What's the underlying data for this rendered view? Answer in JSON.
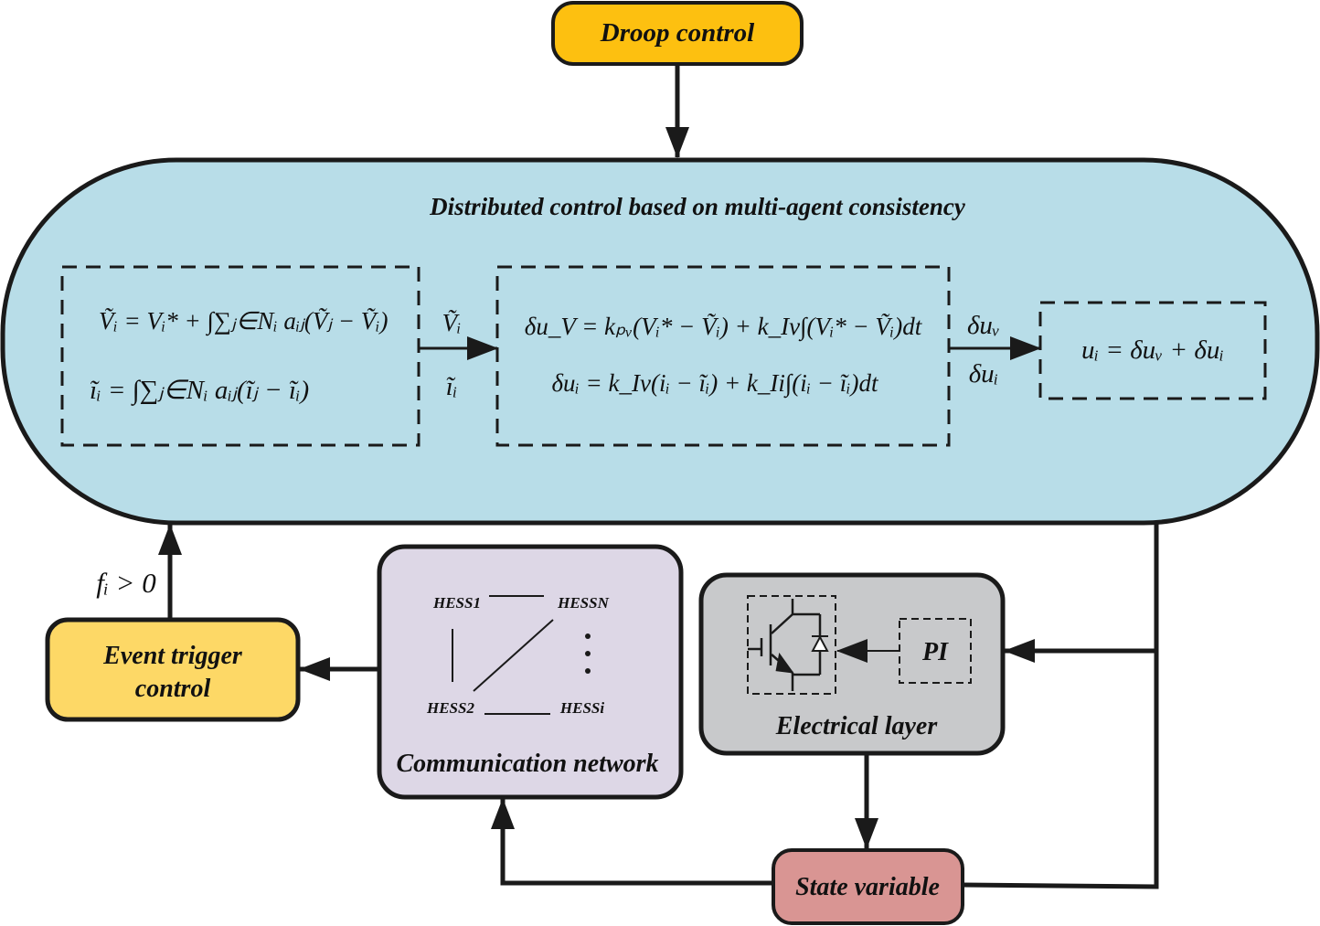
{
  "colors": {
    "droop": "#FDC010",
    "main": "#B8DDE8",
    "event": "#FDD866",
    "communication": "#DDD7E6",
    "electrical": "#C8C9CB",
    "state": "#D99593",
    "stroke": "#1a1a1a"
  },
  "droop": {
    "label": "Droop control"
  },
  "main": {
    "title": "Distributed control based on multi-agent consistency",
    "consensus_eq_v": "Ṽᵢ = Vᵢ* + ∫∑ⱼ∈Nᵢ aᵢⱼ(Ṽⱼ − Ṽᵢ)",
    "consensus_eq_i": "ĩᵢ = ∫∑ⱼ∈Nᵢ aᵢⱼ(ĩⱼ − ĩᵢ)",
    "arrow1_top": "Ṽᵢ",
    "arrow1_bottom": "ĩᵢ",
    "pi_eq_v": "δu_V = kₚᵥ(Vᵢ* − Ṽᵢ) + k_Iv∫(Vᵢ* − Ṽᵢ)dt",
    "pi_eq_i": "δuᵢ = k_Iv(iᵢ − ĩᵢ) + k_Ii∫(iᵢ − ĩᵢ)dt",
    "arrow2_top": "δuᵥ",
    "arrow2_bottom": "δuᵢ",
    "sum_eq": "uᵢ = δuᵥ + δuᵢ"
  },
  "event": {
    "line1": "Event trigger",
    "line2": "control",
    "condition": "fᵢ > 0"
  },
  "communication": {
    "label": "Communication network",
    "nodes": [
      "HESS1",
      "HESSN",
      "HESS2",
      "HESSi"
    ],
    "ellipsis": "⋮"
  },
  "electrical": {
    "label": "Electrical layer",
    "pi": "PI",
    "icons": [
      "igbt-icon",
      "diode-icon"
    ]
  },
  "state": {
    "label": "State variable"
  }
}
